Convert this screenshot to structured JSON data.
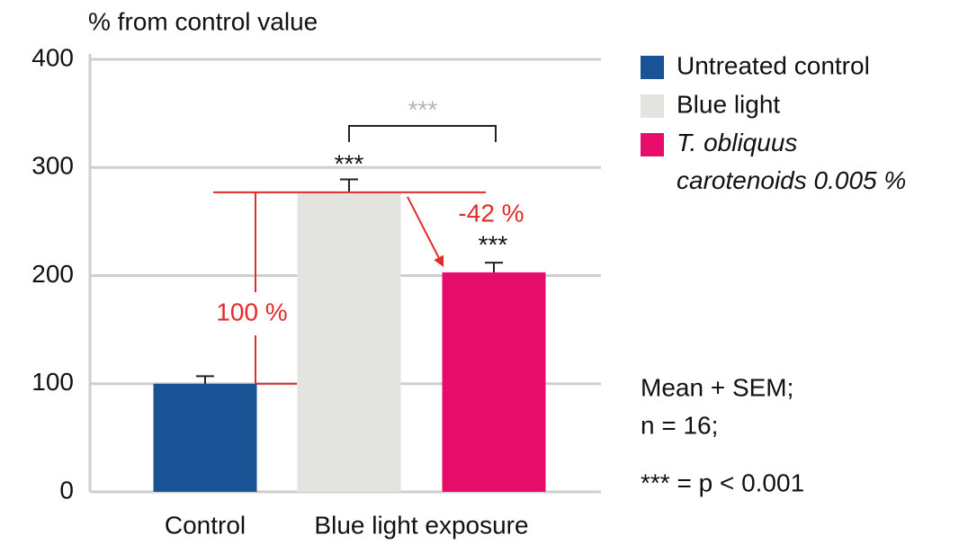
{
  "chart_data": {
    "type": "bar",
    "y_label": "% from control value",
    "categories": [
      "Control",
      "Blue light exposure",
      null
    ],
    "series": [
      {
        "name": "Untreated control",
        "color": "#1a5296",
        "values": [
          100,
          null,
          null
        ],
        "errors": [
          7,
          null,
          null
        ]
      },
      {
        "name": "Blue light",
        "color": "#e3e4e0",
        "values": [
          null,
          277,
          null
        ],
        "errors": [
          null,
          12,
          null
        ]
      },
      {
        "name": "T. obliquus carotenoids 0.005 %",
        "color": "#e70c6a",
        "values": [
          null,
          null,
          203
        ],
        "errors": [
          null,
          null,
          9
        ]
      }
    ],
    "ylim": [
      0,
      400
    ],
    "yticks": [
      0,
      100,
      200,
      300,
      400
    ],
    "grid": true,
    "legend": "right",
    "annotations": {
      "sig_blue": "***",
      "sig_treated": "***",
      "sig_bracket": "***",
      "increase": "100 %",
      "decrease": "-42 %"
    },
    "notes": [
      "Mean + SEM;",
      "n = 16;",
      "*** = p < 0.001"
    ]
  }
}
